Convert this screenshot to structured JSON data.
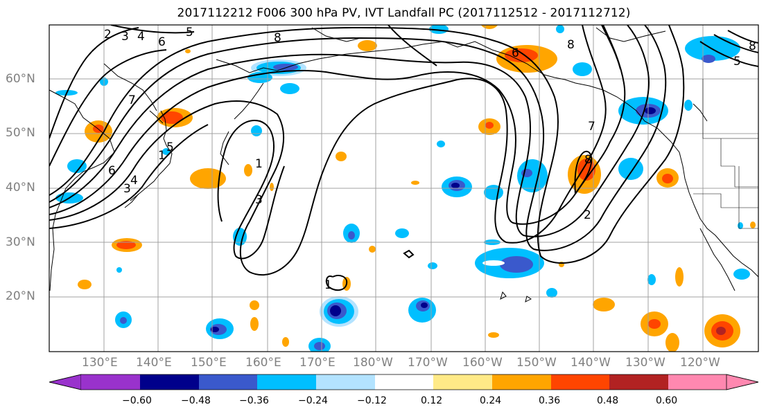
{
  "title": "2017112212 F006 300 hPa PV, IVT Landfall PC (2017112512 - 2017112712)",
  "lat_labels": [
    "60°N",
    "50°N",
    "40°N",
    "30°N",
    "20°N"
  ],
  "lon_labels": [
    "130°E",
    "140°E",
    "150°E",
    "160°E",
    "170°E",
    "180°W",
    "170°W",
    "160°W",
    "150°W",
    "140°W",
    "130°W",
    "120°W"
  ],
  "colorbar": {
    "bins": [
      "#9932cc",
      "#00008b",
      "#3a59cc",
      "#00bfff",
      "#b3e3ff",
      "#ffffff",
      "#ffea87",
      "#ffa500",
      "#ff4500",
      "#b22222",
      "#ff88b0"
    ],
    "tick_labels": [
      "−0.60",
      "−0.48",
      "−0.36",
      "−0.24",
      "−0.12",
      "0.12",
      "0.24",
      "0.36",
      "0.48",
      "0.60"
    ]
  },
  "contour_labels": [
    "2",
    "3",
    "4",
    "5",
    "6",
    "7",
    "8",
    "1",
    "5",
    "6",
    "4",
    "3",
    "1",
    "3",
    "1",
    "6",
    "8",
    "8",
    "7",
    "8",
    "2",
    "5"
  ],
  "colors": {
    "coast": "#000000",
    "grid": "#a0a0a0",
    "contour": "#000000"
  }
}
